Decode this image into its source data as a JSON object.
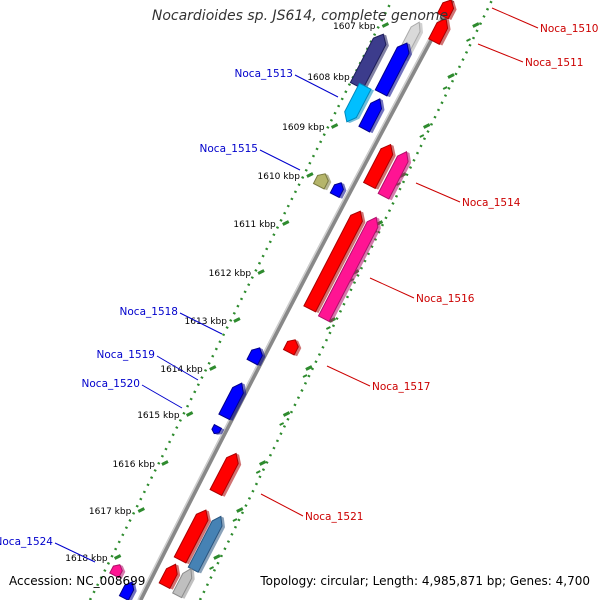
{
  "title": "Nocardioides sp. JS614, complete genome",
  "footer": {
    "accession": "Accession: NC_008699",
    "topology": "Topology: circular; Length: 4,985,871 bp; Genes: 4,700"
  },
  "colors": {
    "backbone": "#808080",
    "forward_red": "#ff0000",
    "forward_magenta": "#ff1493",
    "reverse_blue": "#0000ff",
    "reverse_navy": "#3c3c8c",
    "reverse_cyan": "#00bfff",
    "olive": "#b5b56a",
    "steel": "#4682b4",
    "gray": "#bfbfbf",
    "label_blue": "#0000cc",
    "label_red": "#cc0000",
    "tick_green": "#228b22"
  },
  "ticks": [
    {
      "label": "1607 kbp"
    },
    {
      "label": "1608 kbp"
    },
    {
      "label": "1609 kbp"
    },
    {
      "label": "1610 kbp"
    },
    {
      "label": "1611 kbp"
    },
    {
      "label": "1612 kbp"
    },
    {
      "label": "1613 kbp"
    },
    {
      "label": "1614 kbp"
    },
    {
      "label": "1615 kbp"
    },
    {
      "label": "1616 kbp"
    },
    {
      "label": "1617 kbp"
    },
    {
      "label": "1618 kbp"
    }
  ],
  "gene_labels": [
    {
      "name": "Noca_1510",
      "strand": "plus"
    },
    {
      "name": "Noca_1511",
      "strand": "plus"
    },
    {
      "name": "Noca_1513",
      "strand": "minus"
    },
    {
      "name": "Noca_1514",
      "strand": "plus"
    },
    {
      "name": "Noca_1515",
      "strand": "minus"
    },
    {
      "name": "Noca_1516",
      "strand": "plus"
    },
    {
      "name": "Noca_1517",
      "strand": "plus"
    },
    {
      "name": "Noca_1518",
      "strand": "minus"
    },
    {
      "name": "Noca_1519",
      "strand": "minus"
    },
    {
      "name": "Noca_1520",
      "strand": "minus"
    },
    {
      "name": "Noca_1521",
      "strand": "plus"
    },
    {
      "name": "Noca_1524",
      "strand": "minus"
    }
  ]
}
